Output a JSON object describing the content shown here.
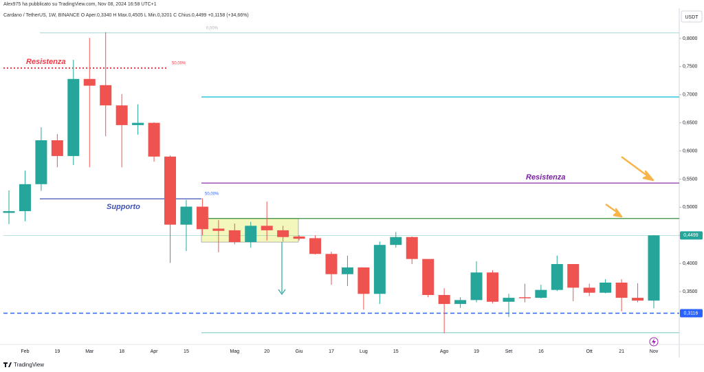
{
  "chart_data": {
    "type": "candlestick",
    "header": {
      "author": "Alex975 ha pubblicato su TradingView.com, Nov 08, 2024 16:58 UTC+1",
      "symbol": "Cardano / TetherUS, 1W, BINANCE  O Aper.0,3340  H Max.0,4505  L Min.0,3201  C Chius.0,4499 +0,1158 (+34,66%)"
    },
    "footer": "TradingView",
    "currency": "USDT",
    "categories": [
      null,
      "Feb",
      null,
      "19",
      null,
      "Mar",
      null,
      "18",
      null,
      "Apr",
      null,
      "15",
      null,
      null,
      "Mag",
      null,
      "20",
      null,
      "Giu",
      null,
      "17",
      null,
      "Lug",
      null,
      "15",
      null,
      null,
      "Ago",
      null,
      "19",
      null,
      "Set",
      null,
      "16",
      null,
      null,
      "Ott",
      null,
      "21",
      null,
      "Nov"
    ],
    "open": [
      0.49,
      0.493,
      0.541,
      0.619,
      0.591,
      0.728,
      0.717,
      0.681,
      0.646,
      0.65,
      0.59,
      0.469,
      0.501,
      0.462,
      0.459,
      0.438,
      0.467,
      0.459,
      0.448,
      0.445,
      0.417,
      0.381,
      0.393,
      0.346,
      0.433,
      0.447,
      0.408,
      0.344,
      0.328,
      0.335,
      0.384,
      0.332,
      0.34,
      0.339,
      0.353,
      0.399,
      0.357,
      0.348,
      0.366,
      0.339,
      0.334
    ],
    "high": [
      0.53,
      0.565,
      0.642,
      0.63,
      0.762,
      0.801,
      0.811,
      0.701,
      0.683,
      0.651,
      0.592,
      0.513,
      0.516,
      0.477,
      0.471,
      0.474,
      0.51,
      0.467,
      0.45,
      0.45,
      0.421,
      0.414,
      0.393,
      0.439,
      0.456,
      0.448,
      0.408,
      0.356,
      0.34,
      0.404,
      0.388,
      0.346,
      0.364,
      0.362,
      0.414,
      0.399,
      0.364,
      0.372,
      0.372,
      0.365,
      0.4505
    ],
    "low": [
      0.47,
      0.475,
      0.529,
      0.571,
      0.575,
      0.571,
      0.626,
      0.571,
      0.629,
      0.581,
      0.401,
      0.422,
      0.45,
      0.42,
      0.434,
      0.428,
      0.441,
      0.439,
      0.441,
      0.416,
      0.362,
      0.36,
      0.318,
      0.328,
      0.428,
      0.399,
      0.34,
      0.276,
      0.321,
      0.331,
      0.329,
      0.305,
      0.331,
      0.338,
      0.351,
      0.333,
      0.342,
      0.347,
      0.315,
      0.331,
      0.3201
    ],
    "close": [
      0.493,
      0.541,
      0.619,
      0.591,
      0.728,
      0.716,
      0.681,
      0.646,
      0.65,
      0.59,
      0.469,
      0.501,
      0.461,
      0.458,
      0.438,
      0.467,
      0.459,
      0.447,
      0.444,
      0.417,
      0.381,
      0.393,
      0.346,
      0.433,
      0.447,
      0.408,
      0.344,
      0.328,
      0.335,
      0.384,
      0.332,
      0.339,
      0.339,
      0.353,
      0.399,
      0.357,
      0.348,
      0.366,
      0.339,
      0.334,
      0.4499
    ],
    "up_color": "#26a69a",
    "down_color": "#ef5350",
    "ylim": [
      0.256,
      0.85
    ],
    "yticks": [
      {
        "value": 0.8,
        "label": "0,8000"
      },
      {
        "value": 0.75,
        "label": "0,7500"
      },
      {
        "value": 0.7,
        "label": "0,7000"
      },
      {
        "value": 0.65,
        "label": "0,6500"
      },
      {
        "value": 0.6,
        "label": "0,6000"
      },
      {
        "value": 0.55,
        "label": "0,5500"
      },
      {
        "value": 0.5,
        "label": "0,5000"
      },
      {
        "value": 0.45,
        "label": "0,4500"
      },
      {
        "value": 0.4,
        "label": "0,4000"
      },
      {
        "value": 0.35,
        "label": "0,3500"
      }
    ],
    "grid": false,
    "levels": [
      {
        "value": 0.81,
        "color": "#b2dfdb",
        "style": "solid"
      },
      {
        "value": 0.7474,
        "color": "#f23645",
        "style": "dotted"
      },
      {
        "value": 0.696,
        "color": "#00bcd4",
        "style": "solid"
      },
      {
        "value": 0.543,
        "color": "#7b1fa2",
        "style": "solid"
      },
      {
        "value": 0.515,
        "color": "#3f51b5",
        "style": "solid"
      },
      {
        "value": 0.48,
        "color": "#388e3c",
        "style": "solid"
      },
      {
        "value": 0.277,
        "color": "#80cbc4",
        "style": "solid"
      }
    ],
    "labels": [
      {
        "text": "0,00%",
        "color": "#b0b0b0"
      },
      {
        "text": "Resistenza",
        "color": "#f23645"
      },
      {
        "text": "50,00%",
        "color": "#f23645"
      },
      {
        "text": "Resistenza",
        "color": "#7b1fa2"
      },
      {
        "text": "Supporto",
        "color": "#3f51b5"
      },
      {
        "text": "50,00%",
        "color": "#2962ff"
      }
    ],
    "zone": {
      "top": 0.48,
      "bottom": 0.438,
      "color": "#f0f4a0"
    },
    "price_lines": [
      {
        "value": 0.4499,
        "label": "0,4499",
        "color": "#26a69a",
        "style": "solid"
      },
      {
        "value": 0.3116,
        "label": "0,3116",
        "color": "#2962ff",
        "style": "dashed"
      }
    ]
  }
}
